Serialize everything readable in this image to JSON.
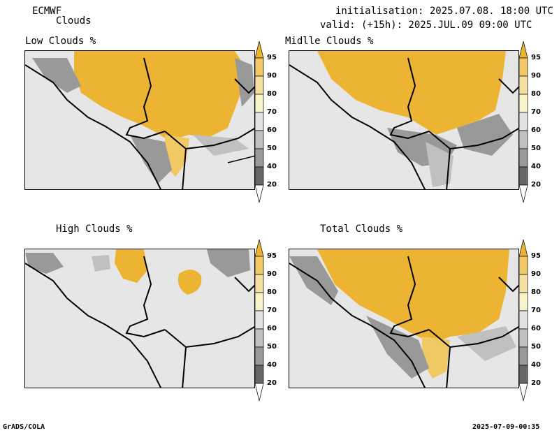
{
  "header": {
    "model": "ECMWF",
    "variable": "Clouds",
    "init_line": "initialisation: 2025.07.08. 18:00 UTC",
    "valid_line": "valid: (+15h): 2025.JUL.09 09:00 UTC"
  },
  "panels": [
    {
      "title": "Low Clouds %"
    },
    {
      "title": "Midlle Clouds %"
    },
    {
      "title": "High Clouds %"
    },
    {
      "title": "Total Clouds %"
    }
  ],
  "colorbar": {
    "levels": [
      "95",
      "90",
      "80",
      "70",
      "60",
      "50",
      "40",
      "20"
    ],
    "colors": [
      "#ecb432",
      "#f0c864",
      "#f4dfa0",
      "#f6f3c8",
      "#e2e2e2",
      "#c0c0c0",
      "#999999",
      "#666666",
      "#ffffff"
    ]
  },
  "footer": {
    "left": "GrADS/COLA",
    "right": "2025-07-09-00:35"
  }
}
